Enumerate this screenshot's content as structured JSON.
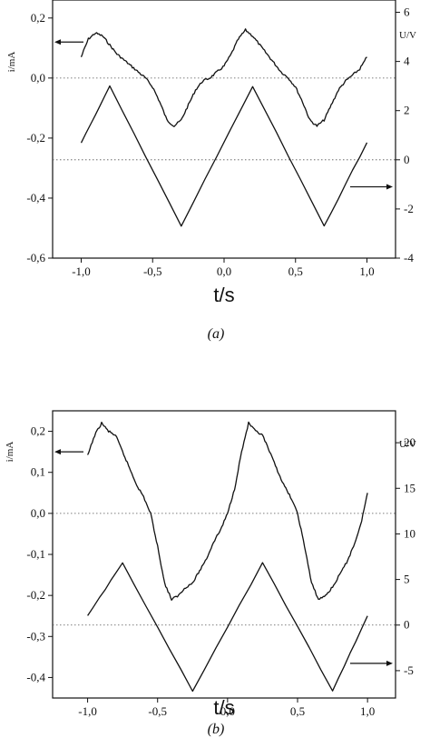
{
  "chart_data": [
    {
      "type": "line",
      "caption": "(a)",
      "xlabel": "t/s",
      "ylabel": "i/mA",
      "y2label": "U/V",
      "xlim": [
        -1.2,
        1.2
      ],
      "ylim": [
        -0.6,
        0.26
      ],
      "y2lim": [
        -4,
        6.5
      ],
      "xticks": [
        "-1,0",
        "-0,5",
        "0,0",
        "0,5",
        "1,0"
      ],
      "yticks": [
        "0,2",
        "0,0",
        "-0,2",
        "-0,4",
        "-0,6"
      ],
      "y2ticks": [
        "6",
        "4",
        "2",
        "0",
        "-2",
        "-4"
      ],
      "reference_lines": [
        {
          "axis": "y",
          "value": 0.0,
          "style": "dotted"
        },
        {
          "axis": "y2",
          "value": 0.0,
          "style": "dotted"
        }
      ],
      "arrows": [
        {
          "target_axis": "left",
          "y": 0.12
        },
        {
          "target_axis": "right",
          "y2": -1.1
        }
      ],
      "series": [
        {
          "axis": "left",
          "x": [
            -1.0,
            -0.95,
            -0.9,
            -0.85,
            -0.8,
            -0.75,
            -0.7,
            -0.65,
            -0.6,
            -0.55,
            -0.5,
            -0.45,
            -0.4,
            -0.35,
            -0.3,
            -0.25,
            -0.2,
            -0.15,
            -0.1,
            -0.05,
            0.0,
            0.05,
            0.1,
            0.15,
            0.2,
            0.25,
            0.3,
            0.35,
            0.4,
            0.45,
            0.5,
            0.55,
            0.6,
            0.65,
            0.7,
            0.75,
            0.8,
            0.85,
            0.9,
            0.95,
            1.0
          ],
          "y": [
            0.07,
            0.13,
            0.15,
            0.14,
            0.11,
            0.08,
            0.06,
            0.04,
            0.02,
            0.0,
            -0.03,
            -0.08,
            -0.14,
            -0.16,
            -0.14,
            -0.09,
            -0.04,
            -0.01,
            0.0,
            0.02,
            0.04,
            0.08,
            0.13,
            0.16,
            0.14,
            0.11,
            0.08,
            0.05,
            0.02,
            0.0,
            -0.03,
            -0.08,
            -0.14,
            -0.16,
            -0.14,
            -0.09,
            -0.04,
            -0.01,
            0.01,
            0.03,
            0.07
          ]
        },
        {
          "axis": "right",
          "x": [
            -1.0,
            -0.8,
            -0.3,
            0.2,
            0.7,
            1.0
          ],
          "y": [
            0.7,
            3.0,
            -2.7,
            3.0,
            -2.7,
            0.7
          ]
        }
      ]
    },
    {
      "type": "line",
      "caption": "(b)",
      "xlabel": "t/s",
      "ylabel": "i/mA",
      "y2label": "U/V",
      "xlim": [
        -1.25,
        1.2
      ],
      "ylim": [
        -0.45,
        0.25
      ],
      "y2lim": [
        -8,
        23.5
      ],
      "xticks": [
        "-1,0",
        "-0,5",
        "0,0",
        "0,5",
        "1,0"
      ],
      "yticks": [
        "0,2",
        "0,1",
        "0,0",
        "-0,1",
        "-0,2",
        "-0,3",
        "-0,4"
      ],
      "y2ticks": [
        "20",
        "15",
        "10",
        "5",
        "0",
        "-5"
      ],
      "reference_lines": [
        {
          "axis": "y",
          "value": 0.0,
          "style": "dotted"
        },
        {
          "axis": "y2",
          "value": 0.0,
          "style": "dotted"
        }
      ],
      "arrows": [
        {
          "target_axis": "left",
          "y": 0.15
        },
        {
          "target_axis": "right",
          "y2": -4.2
        }
      ],
      "series": [
        {
          "axis": "left",
          "x": [
            -1.0,
            -0.95,
            -0.9,
            -0.85,
            -0.8,
            -0.75,
            -0.7,
            -0.65,
            -0.6,
            -0.55,
            -0.5,
            -0.45,
            -0.4,
            -0.35,
            -0.3,
            -0.25,
            -0.2,
            -0.15,
            -0.1,
            -0.05,
            0.0,
            0.05,
            0.1,
            0.15,
            0.2,
            0.25,
            0.3,
            0.35,
            0.4,
            0.45,
            0.5,
            0.55,
            0.6,
            0.65,
            0.7,
            0.75,
            0.8,
            0.85,
            0.9,
            0.95,
            1.0
          ],
          "y": [
            0.14,
            0.19,
            0.22,
            0.2,
            0.19,
            0.15,
            0.11,
            0.07,
            0.04,
            0.0,
            -0.08,
            -0.17,
            -0.21,
            -0.2,
            -0.18,
            -0.17,
            -0.14,
            -0.11,
            -0.07,
            -0.04,
            0.0,
            0.06,
            0.15,
            0.22,
            0.2,
            0.19,
            0.15,
            0.11,
            0.07,
            0.04,
            0.0,
            -0.08,
            -0.17,
            -0.21,
            -0.2,
            -0.18,
            -0.15,
            -0.12,
            -0.08,
            -0.03,
            0.05
          ]
        },
        {
          "axis": "right",
          "x": [
            -1.0,
            -0.75,
            -0.25,
            0.25,
            0.75,
            1.0
          ],
          "y": [
            1.0,
            6.8,
            -7.2,
            6.8,
            -7.2,
            1.0
          ]
        }
      ]
    }
  ]
}
